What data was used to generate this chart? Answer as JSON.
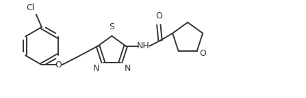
{
  "background_color": "#ffffff",
  "line_color": "#333333",
  "line_width": 1.4,
  "font_size": 8.5,
  "figsize": [
    4.47,
    1.44
  ],
  "dpi": 100,
  "xlim": [
    0,
    10.0
  ],
  "ylim": [
    0,
    3.2
  ]
}
